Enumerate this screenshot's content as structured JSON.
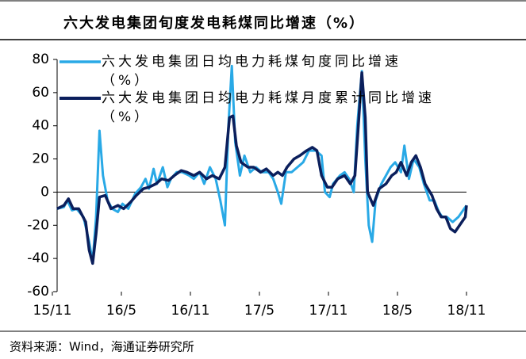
{
  "chart_data": {
    "type": "line",
    "title": "六大发电集团旬度发电耗煤同比增速（%）",
    "source": "资料来源：Wind，海通证券研究所",
    "xlim": [
      0,
      36
    ],
    "xticks": [
      {
        "value": 0,
        "label": "15/11"
      },
      {
        "value": 6,
        "label": "16/5"
      },
      {
        "value": 12,
        "label": "16/11"
      },
      {
        "value": 18,
        "label": "17/5"
      },
      {
        "value": 24,
        "label": "17/11"
      },
      {
        "value": 30,
        "label": "18/5"
      },
      {
        "value": 36,
        "label": "18/11"
      }
    ],
    "ylim": [
      -60,
      80
    ],
    "yticks": [
      -60,
      -40,
      -20,
      0,
      20,
      40,
      60,
      80
    ],
    "legend": "top-left",
    "series": [
      {
        "name": "六大发电集团日均电力耗煤旬度同比增速（%）",
        "color": "#29a9e6",
        "x": [
          0.4,
          1.0,
          1.3,
          1.7,
          2.1,
          2.7,
          3.2,
          3.5,
          3.8,
          4.1,
          4.4,
          4.8,
          5.2,
          5.7,
          6.1,
          6.6,
          7.2,
          7.7,
          8.1,
          8.4,
          8.8,
          9.1,
          9.6,
          10.0,
          10.3,
          10.8,
          11.3,
          11.9,
          12.3,
          12.8,
          13.2,
          13.7,
          14.2,
          14.6,
          15.0,
          15.3,
          15.6,
          15.9,
          16.3,
          16.7,
          17.2,
          17.7,
          18.2,
          18.8,
          19.2,
          19.6,
          19.9,
          20.3,
          20.8,
          21.3,
          21.8,
          22.3,
          22.9,
          23.4,
          23.7,
          24.1,
          24.4,
          25.0,
          25.4,
          25.8,
          26.2,
          26.5,
          26.9,
          27.2,
          27.5,
          27.8,
          28.1,
          28.6,
          29.0,
          29.4,
          29.8,
          30.3,
          30.6,
          31.0,
          31.4,
          31.9,
          32.3,
          32.8,
          33.2,
          33.6,
          33.9,
          34.3,
          34.8,
          35.3,
          35.8,
          36.0
        ],
        "values": [
          -10,
          -9,
          -5,
          -11,
          -10,
          -15,
          -30,
          -42,
          -15,
          37,
          10,
          -5,
          -10,
          -12,
          -7,
          -10,
          -1,
          3,
          8,
          2,
          14,
          5,
          15,
          3,
          8,
          12,
          12,
          10,
          8,
          12,
          5,
          15,
          8,
          -5,
          -20,
          40,
          76,
          30,
          10,
          22,
          12,
          15,
          12,
          12,
          8,
          0,
          -7,
          12,
          12,
          15,
          18,
          25,
          25,
          22,
          0,
          -3,
          5,
          10,
          12,
          8,
          0,
          40,
          73,
          20,
          -20,
          -30,
          -5,
          5,
          10,
          15,
          18,
          12,
          28,
          8,
          20,
          15,
          5,
          -5,
          -5,
          -12,
          -15,
          -15,
          -18,
          -15,
          -10,
          -8
        ]
      },
      {
        "name": "六大发电集团日均电力耗煤月度累计同比增速（%）",
        "color": "#0b1f5c",
        "x": [
          0.4,
          1.0,
          1.4,
          1.8,
          2.3,
          2.9,
          3.2,
          3.5,
          3.8,
          4.1,
          4.6,
          5.1,
          5.7,
          6.2,
          6.8,
          7.3,
          7.9,
          8.4,
          9.0,
          9.5,
          10.1,
          10.6,
          11.2,
          11.7,
          12.3,
          12.8,
          13.4,
          13.9,
          14.5,
          15.0,
          15.4,
          15.7,
          16.0,
          16.4,
          17.0,
          17.5,
          18.1,
          18.6,
          19.2,
          19.6,
          20.0,
          20.4,
          21.0,
          21.5,
          22.1,
          22.6,
          23.0,
          23.4,
          23.9,
          24.3,
          24.8,
          25.4,
          25.9,
          26.3,
          26.6,
          26.9,
          27.2,
          27.4,
          27.9,
          28.4,
          29.0,
          29.5,
          29.9,
          30.3,
          30.8,
          31.2,
          31.6,
          32.0,
          32.4,
          33.0,
          33.4,
          33.8,
          34.2,
          34.6,
          35.0,
          35.4,
          35.9,
          36.0
        ],
        "values": [
          -10,
          -8,
          -4,
          -10,
          -10,
          -18,
          -35,
          -43,
          -25,
          -3,
          -2,
          -10,
          -8,
          -10,
          -6,
          -2,
          2,
          3,
          5,
          8,
          7,
          10,
          13,
          12,
          10,
          12,
          8,
          10,
          8,
          15,
          45,
          46,
          28,
          18,
          15,
          15,
          12,
          14,
          10,
          12,
          10,
          15,
          20,
          22,
          25,
          27,
          25,
          10,
          3,
          3,
          8,
          10,
          5,
          10,
          40,
          72,
          45,
          0,
          -8,
          2,
          5,
          10,
          12,
          18,
          10,
          18,
          22,
          15,
          5,
          -2,
          -10,
          -15,
          -15,
          -22,
          -24,
          -20,
          -15,
          -8
        ]
      }
    ]
  }
}
